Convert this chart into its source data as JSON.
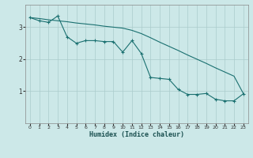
{
  "xlabel": "Humidex (Indice chaleur)",
  "xlim": [
    -0.5,
    23.5
  ],
  "ylim": [
    0,
    3.7
  ],
  "yticks": [
    1,
    2,
    3
  ],
  "xticks": [
    0,
    1,
    2,
    3,
    4,
    5,
    6,
    7,
    8,
    9,
    10,
    11,
    12,
    13,
    14,
    15,
    16,
    17,
    18,
    19,
    20,
    21,
    22,
    23
  ],
  "background_color": "#cce8e8",
  "grid_color": "#aacccc",
  "line_color": "#1a7070",
  "line1_x": [
    0,
    1,
    2,
    3,
    4,
    5,
    6,
    7,
    8,
    9,
    10,
    11,
    12,
    13,
    14,
    15,
    16,
    17,
    18,
    19,
    20,
    21,
    22,
    23
  ],
  "line1_y": [
    3.3,
    3.27,
    3.23,
    3.2,
    3.17,
    3.13,
    3.1,
    3.07,
    3.03,
    3.0,
    2.97,
    2.9,
    2.8,
    2.67,
    2.53,
    2.4,
    2.27,
    2.13,
    2.0,
    1.87,
    1.73,
    1.6,
    1.47,
    0.93
  ],
  "line2_x": [
    0,
    1,
    2,
    3,
    4,
    5,
    6,
    7,
    8,
    9,
    10,
    11,
    12,
    13,
    14,
    15,
    16,
    17,
    18,
    19,
    20,
    21,
    22,
    23
  ],
  "line2_y": [
    3.3,
    3.2,
    3.15,
    3.35,
    2.7,
    2.5,
    2.58,
    2.58,
    2.55,
    2.55,
    2.22,
    2.58,
    2.18,
    1.43,
    1.4,
    1.37,
    1.05,
    0.9,
    0.9,
    0.93,
    0.75,
    0.7,
    0.7,
    0.92
  ]
}
